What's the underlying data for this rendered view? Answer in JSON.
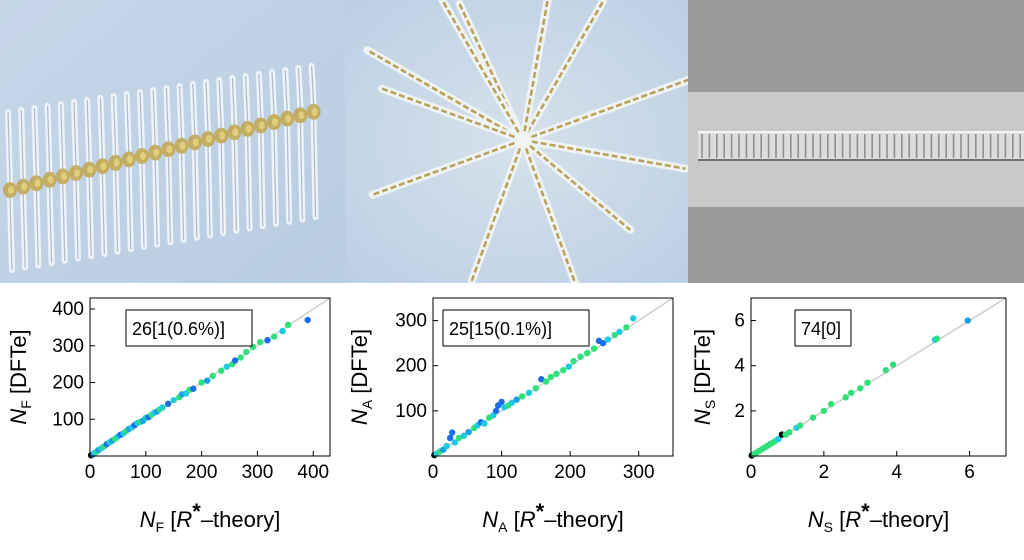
{
  "figure": {
    "photos": [
      {
        "name": "comb-chain-colony"
      },
      {
        "name": "star-colony"
      },
      {
        "name": "stacked-chain"
      }
    ]
  },
  "chart_data": [
    {
      "type": "scatter",
      "name": "nf-plot",
      "xlabel": {
        "italic": "N",
        "sub": "F",
        "rest": "  [",
        "ital2": "R",
        "sup": "*",
        "tail": "–theory]"
      },
      "ylabel": {
        "italic": "N",
        "sub": "F",
        "rest": "  [DFTe]"
      },
      "annotation": "26[1(0.6%)]",
      "xlim": [
        0,
        430
      ],
      "ylim": [
        0,
        430
      ],
      "xticks": [
        0,
        100,
        200,
        300,
        400
      ],
      "yticks": [
        100,
        200,
        300,
        400
      ],
      "diagonal": true,
      "points": [
        [
          2,
          2,
          "#000000"
        ],
        [
          5,
          4,
          "#1a6fe8"
        ],
        [
          8,
          8,
          "#1fc9e0"
        ],
        [
          12,
          12,
          "#30e07a"
        ],
        [
          15,
          16,
          "#1a9fe8"
        ],
        [
          20,
          21,
          "#1fc9e0"
        ],
        [
          25,
          26,
          "#30e07a"
        ],
        [
          30,
          32,
          "#1a6fe8"
        ],
        [
          35,
          37,
          "#1fc9e0"
        ],
        [
          40,
          42,
          "#1a9fe8"
        ],
        [
          45,
          47,
          "#30e07a"
        ],
        [
          50,
          53,
          "#1fc9e0"
        ],
        [
          55,
          58,
          "#1a6fe8"
        ],
        [
          60,
          62,
          "#1fc9e0"
        ],
        [
          65,
          68,
          "#30e07a"
        ],
        [
          70,
          74,
          "#1a9fe8"
        ],
        [
          75,
          78,
          "#1fc9e0"
        ],
        [
          80,
          84,
          "#1a6fe8"
        ],
        [
          85,
          90,
          "#1fc9e0"
        ],
        [
          90,
          93,
          "#30e07a"
        ],
        [
          95,
          96,
          "#1a9fe8"
        ],
        [
          100,
          104,
          "#1fc9e0"
        ],
        [
          105,
          106,
          "#1a6fe8"
        ],
        [
          110,
          112,
          "#30e07a"
        ],
        [
          115,
          118,
          "#1fc9e0"
        ],
        [
          120,
          121,
          "#1a9fe8"
        ],
        [
          125,
          127,
          "#30e07a"
        ],
        [
          130,
          132,
          "#1fc9e0"
        ],
        [
          140,
          142,
          "#1a6fe8"
        ],
        [
          150,
          152,
          "#1fc9e0"
        ],
        [
          160,
          160,
          "#30e07a"
        ],
        [
          165,
          168,
          "#1a9fe8"
        ],
        [
          172,
          170,
          "#1fc9e0"
        ],
        [
          178,
          180,
          "#30e07a"
        ],
        [
          185,
          183,
          "#1a6fe8"
        ],
        [
          200,
          200,
          "#30e07a"
        ],
        [
          210,
          205,
          "#1a9fe8"
        ],
        [
          220,
          218,
          "#30e07a"
        ],
        [
          235,
          232,
          "#30e07a"
        ],
        [
          245,
          243,
          "#1fc9e0"
        ],
        [
          255,
          250,
          "#30e07a"
        ],
        [
          260,
          260,
          "#1a6fe8"
        ],
        [
          270,
          268,
          "#30e07a"
        ],
        [
          280,
          283,
          "#30e07a"
        ],
        [
          292,
          297,
          "#30e07a"
        ],
        [
          305,
          310,
          "#30e07a"
        ],
        [
          318,
          315,
          "#1a6fe8"
        ],
        [
          330,
          325,
          "#30e07a"
        ],
        [
          345,
          340,
          "#1fc9e0"
        ],
        [
          355,
          357,
          "#30e07a"
        ],
        [
          390,
          370,
          "#1a6fe8"
        ]
      ]
    },
    {
      "type": "scatter",
      "name": "na-plot",
      "xlabel": {
        "italic": "N",
        "sub": "A",
        "rest": "  [",
        "ital2": "R",
        "sup": "*",
        "tail": "–theory]"
      },
      "ylabel": {
        "italic": "N",
        "sub": "A",
        "rest": "  [DFTe]"
      },
      "annotation": "25[15(0.1%)]",
      "xlim": [
        0,
        350
      ],
      "ylim": [
        0,
        350
      ],
      "xticks": [
        0,
        100,
        200,
        300
      ],
      "yticks": [
        100,
        200,
        300
      ],
      "diagonal": true,
      "points": [
        [
          2,
          2,
          "#000000"
        ],
        [
          5,
          5,
          "#1fc9e0"
        ],
        [
          10,
          10,
          "#30e07a"
        ],
        [
          15,
          14,
          "#1a9fe8"
        ],
        [
          20,
          22,
          "#1fc9e0"
        ],
        [
          25,
          40,
          "#1a6fe8"
        ],
        [
          28,
          52,
          "#1a6fe8"
        ],
        [
          32,
          30,
          "#1fc9e0"
        ],
        [
          38,
          40,
          "#30e07a"
        ],
        [
          45,
          45,
          "#1fc9e0"
        ],
        [
          52,
          53,
          "#1a9fe8"
        ],
        [
          60,
          62,
          "#30e07a"
        ],
        [
          65,
          68,
          "#1fc9e0"
        ],
        [
          70,
          75,
          "#1a6fe8"
        ],
        [
          75,
          72,
          "#1fc9e0"
        ],
        [
          82,
          85,
          "#30e07a"
        ],
        [
          88,
          90,
          "#1fc9e0"
        ],
        [
          92,
          100,
          "#1a6fe8"
        ],
        [
          95,
          112,
          "#1a6fe8"
        ],
        [
          100,
          120,
          "#1a6fe8"
        ],
        [
          104,
          108,
          "#1fc9e0"
        ],
        [
          110,
          112,
          "#30e07a"
        ],
        [
          115,
          118,
          "#1fc9e0"
        ],
        [
          122,
          125,
          "#1a9fe8"
        ],
        [
          130,
          132,
          "#30e07a"
        ],
        [
          140,
          140,
          "#1fc9e0"
        ],
        [
          150,
          150,
          "#30e07a"
        ],
        [
          158,
          170,
          "#1a6fe8"
        ],
        [
          165,
          165,
          "#30e07a"
        ],
        [
          172,
          175,
          "#30e07a"
        ],
        [
          180,
          182,
          "#30e07a"
        ],
        [
          190,
          190,
          "#30e07a"
        ],
        [
          198,
          198,
          "#1fc9e0"
        ],
        [
          205,
          210,
          "#30e07a"
        ],
        [
          215,
          220,
          "#30e07a"
        ],
        [
          225,
          228,
          "#30e07a"
        ],
        [
          235,
          238,
          "#30e07a"
        ],
        [
          242,
          255,
          "#1a6fe8"
        ],
        [
          248,
          250,
          "#1a6fe8"
        ],
        [
          255,
          258,
          "#1fc9e0"
        ],
        [
          265,
          268,
          "#30e07a"
        ],
        [
          272,
          275,
          "#1fc9e0"
        ],
        [
          282,
          285,
          "#30e07a"
        ],
        [
          292,
          305,
          "#1fc9e0"
        ]
      ]
    },
    {
      "type": "scatter",
      "name": "ns-plot",
      "xlabel": {
        "italic": "N",
        "sub": "S",
        "rest": "  [",
        "ital2": "R",
        "sup": "*",
        "tail": "–theory]"
      },
      "ylabel": {
        "italic": "N",
        "sub": "S",
        "rest": "  [DFTe]"
      },
      "annotation": "74[0]",
      "xlim": [
        0,
        7
      ],
      "ylim": [
        0,
        7
      ],
      "xticks": [
        0,
        2,
        4,
        6
      ],
      "yticks": [
        2,
        4,
        6
      ],
      "diagonal": true,
      "points": [
        [
          0.02,
          0.02,
          "#000000"
        ],
        [
          0.08,
          0.08,
          "#30e07a"
        ],
        [
          0.15,
          0.15,
          "#30e07a"
        ],
        [
          0.22,
          0.22,
          "#30e07a"
        ],
        [
          0.3,
          0.3,
          "#30e07a"
        ],
        [
          0.38,
          0.38,
          "#30e07a"
        ],
        [
          0.45,
          0.45,
          "#30e07a"
        ],
        [
          0.52,
          0.52,
          "#30e07a"
        ],
        [
          0.6,
          0.6,
          "#30e07a"
        ],
        [
          0.68,
          0.68,
          "#30e07a"
        ],
        [
          0.75,
          0.75,
          "#1fc9e0"
        ],
        [
          0.85,
          0.95,
          "#000000"
        ],
        [
          0.95,
          0.95,
          "#30e07a"
        ],
        [
          1.05,
          1.05,
          "#30e07a"
        ],
        [
          1.25,
          1.25,
          "#1fc9e0"
        ],
        [
          1.35,
          1.35,
          "#30e07a"
        ],
        [
          1.7,
          1.7,
          "#30e07a"
        ],
        [
          2.0,
          2.0,
          "#30e07a"
        ],
        [
          2.2,
          2.3,
          "#30e07a"
        ],
        [
          2.6,
          2.6,
          "#30e07a"
        ],
        [
          2.75,
          2.8,
          "#30e07a"
        ],
        [
          3.0,
          3.0,
          "#30e07a"
        ],
        [
          3.2,
          3.25,
          "#30e07a"
        ],
        [
          3.7,
          3.8,
          "#30e07a"
        ],
        [
          3.9,
          4.05,
          "#30e07a"
        ],
        [
          5.05,
          5.15,
          "#1fc9e0"
        ],
        [
          5.1,
          5.2,
          "#30e07a"
        ],
        [
          5.95,
          6.0,
          "#1a9fe8"
        ]
      ]
    }
  ]
}
